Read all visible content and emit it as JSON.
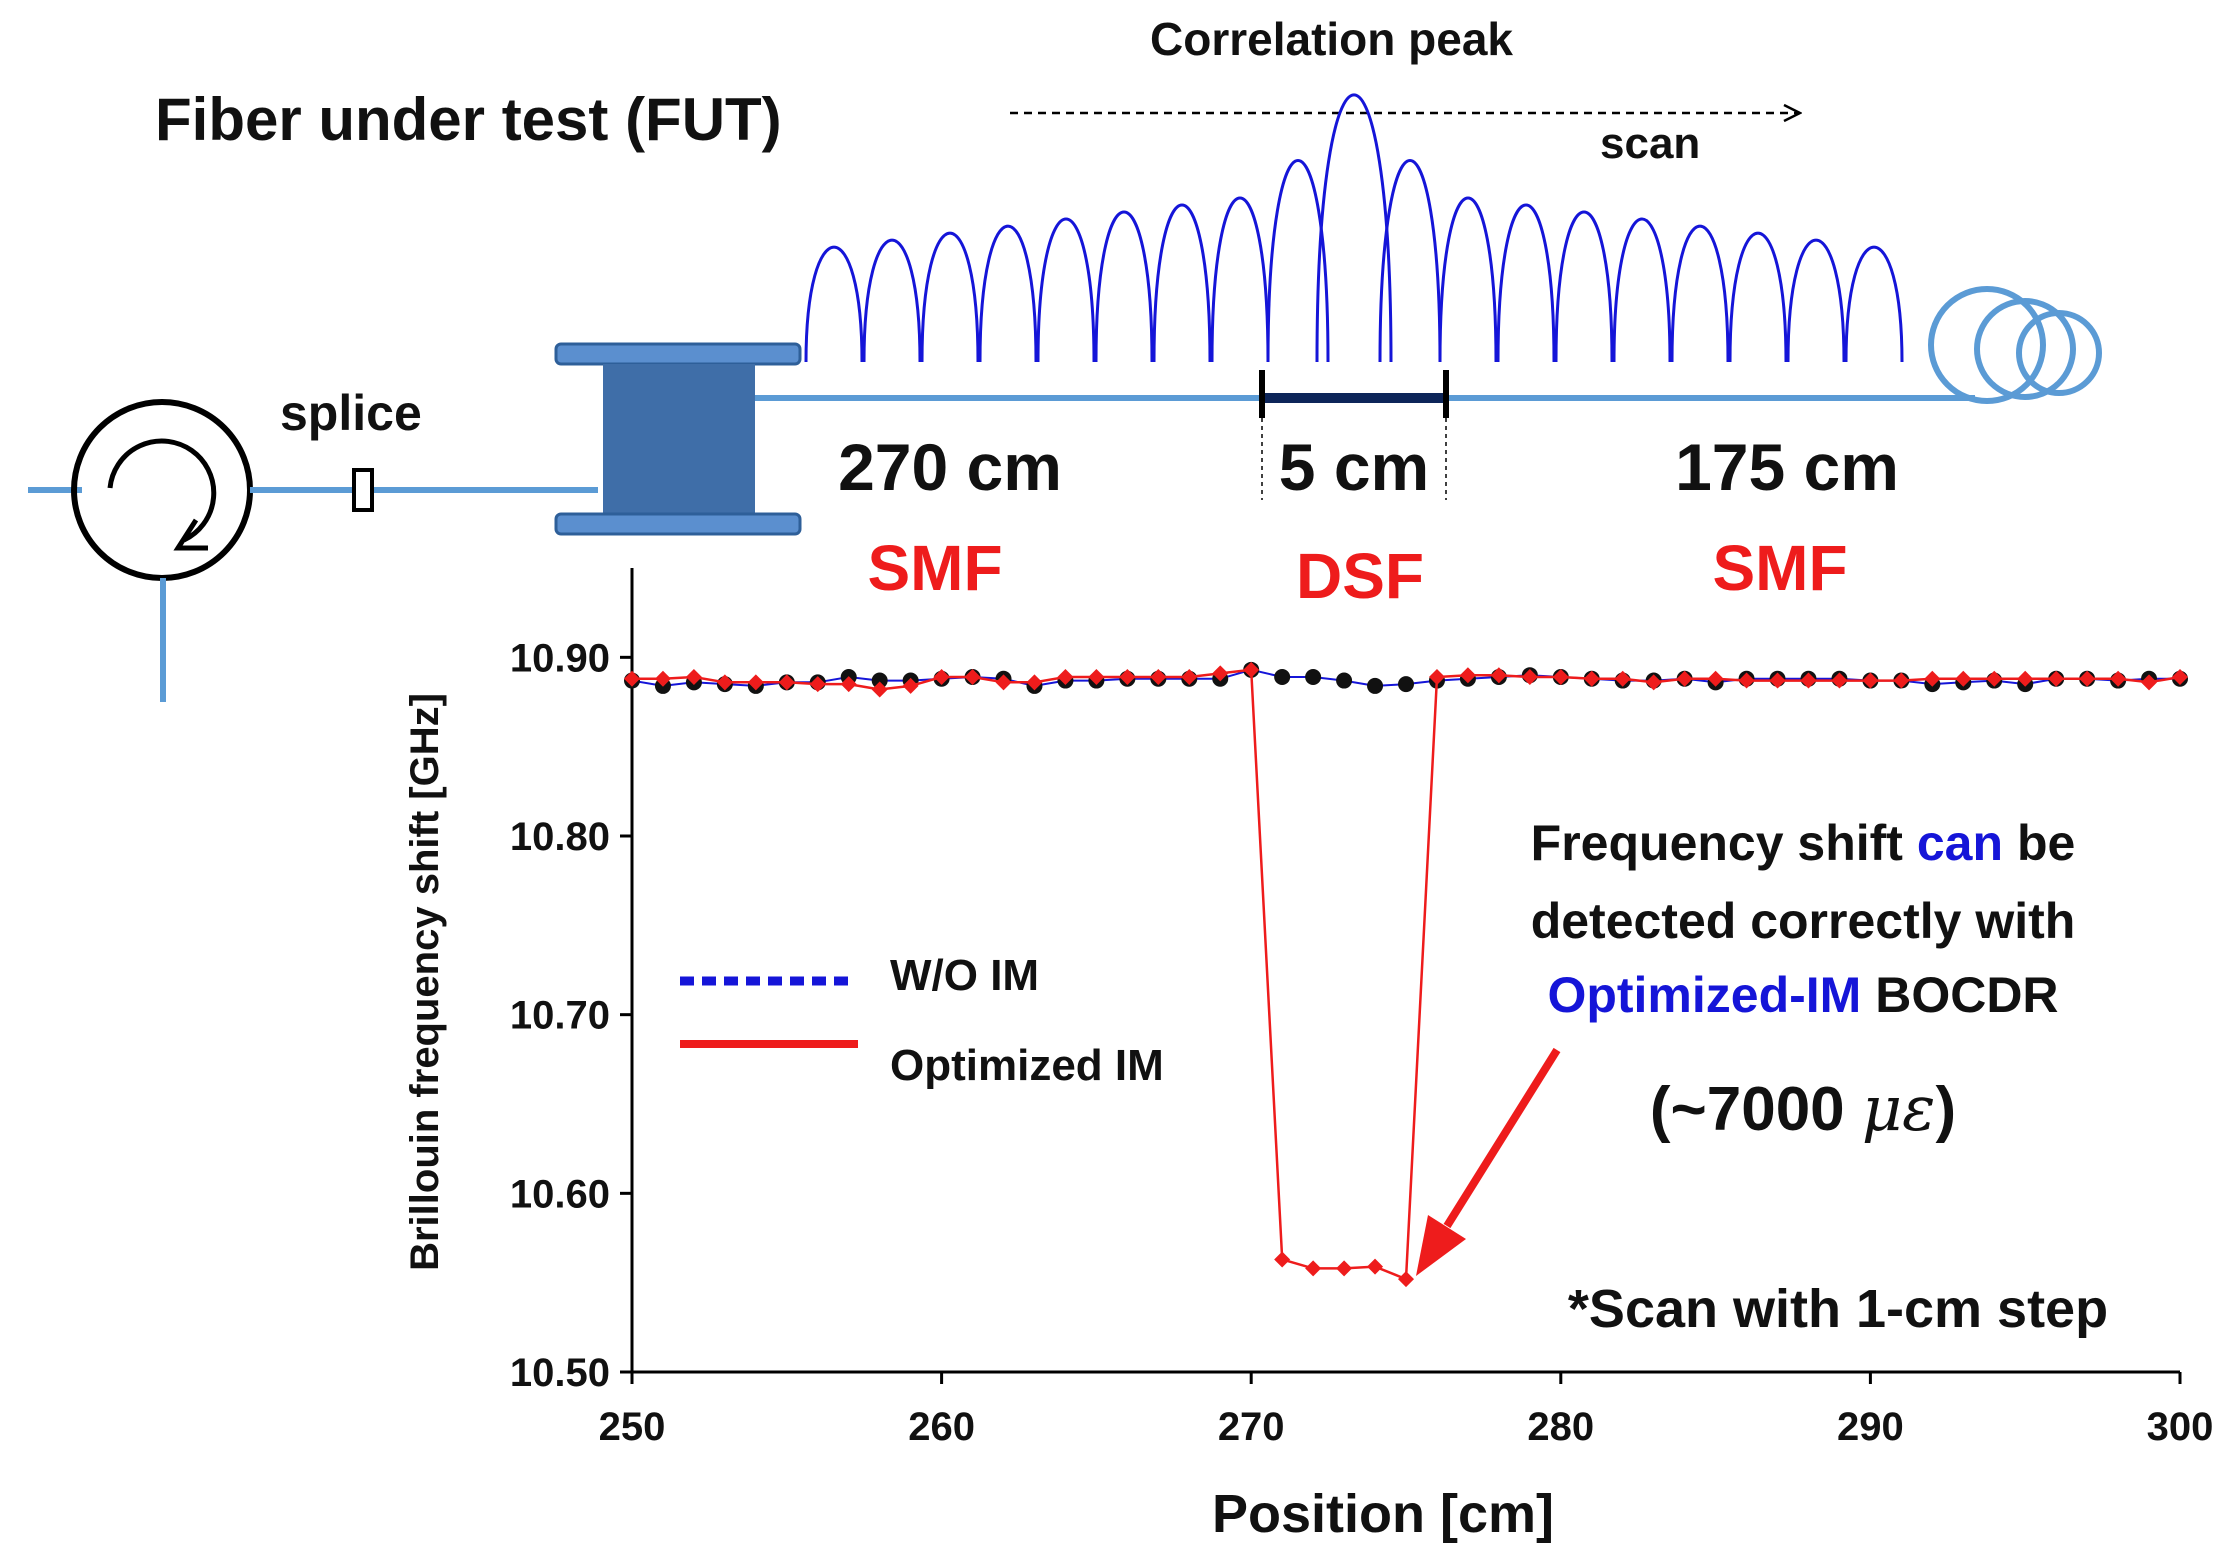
{
  "diagram": {
    "title": "Fiber under test (FUT)",
    "correlation_label": "Correlation peak",
    "scan_label": "scan",
    "splice_label": "splice",
    "segments": [
      {
        "length": "270 cm",
        "type": "SMF"
      },
      {
        "length": "5 cm",
        "type": "DSF"
      },
      {
        "length": "175 cm",
        "type": "SMF"
      }
    ],
    "colors": {
      "fiber": "#5b9bd5",
      "reel": "#3f6ea8",
      "dsf": "#0d2559",
      "peaks": "#1515d8",
      "label_red": "#ee1c1c"
    }
  },
  "annotation": {
    "line1_a": "Frequency shift",
    "line1_b": "can",
    "line1_c": "be",
    "line2": "detected correctly with",
    "line3_a": "Optimized-IM",
    "line3_b": "BOCDR",
    "strain": "(~7000",
    "strain_unit": "με",
    "strain_close": ")",
    "note": "*Scan with 1-cm step"
  },
  "chart_data": {
    "type": "line",
    "xlabel": "Position [cm]",
    "ylabel": "Brillouin frequency shift [GHz]",
    "xlim": [
      250,
      300
    ],
    "ylim": [
      10.5,
      10.95
    ],
    "xticks": [
      "250",
      "260",
      "270",
      "280",
      "290",
      "300"
    ],
    "yticks": [
      "10.50",
      "10.60",
      "10.70",
      "10.80",
      "10.90"
    ],
    "x": [
      250,
      251,
      252,
      253,
      254,
      255,
      256,
      257,
      258,
      259,
      260,
      261,
      262,
      263,
      264,
      265,
      266,
      267,
      268,
      269,
      270,
      271,
      272,
      273,
      274,
      275,
      276,
      277,
      278,
      279,
      280,
      281,
      282,
      283,
      284,
      285,
      286,
      287,
      288,
      289,
      290,
      291,
      292,
      293,
      294,
      295,
      296,
      297,
      298,
      299,
      300
    ],
    "series": [
      {
        "name": "W/O IM",
        "color": "#1515d8",
        "values": [
          10.887,
          10.884,
          10.886,
          10.885,
          10.884,
          10.886,
          10.886,
          10.889,
          10.887,
          10.887,
          10.888,
          10.889,
          10.888,
          10.884,
          10.887,
          10.887,
          10.888,
          10.888,
          10.888,
          10.888,
          10.893,
          10.889,
          10.889,
          10.887,
          10.884,
          10.885,
          10.887,
          10.888,
          10.889,
          10.89,
          10.889,
          10.888,
          10.887,
          10.887,
          10.888,
          10.886,
          10.888,
          10.888,
          10.888,
          10.888,
          10.887,
          10.887,
          10.885,
          10.886,
          10.887,
          10.885,
          10.888,
          10.888,
          10.887,
          10.888,
          10.888
        ]
      },
      {
        "name": "Optimized IM",
        "color": "#ee1c1c",
        "values": [
          10.888,
          10.888,
          10.889,
          10.886,
          10.886,
          10.886,
          10.885,
          10.885,
          10.882,
          10.884,
          10.889,
          10.889,
          10.886,
          10.886,
          10.889,
          10.889,
          10.889,
          10.889,
          10.889,
          10.891,
          10.893,
          10.563,
          10.558,
          10.558,
          10.559,
          10.552,
          10.889,
          10.89,
          10.89,
          10.889,
          10.889,
          10.888,
          10.888,
          10.886,
          10.888,
          10.888,
          10.887,
          10.887,
          10.887,
          10.887,
          10.887,
          10.887,
          10.888,
          10.888,
          10.888,
          10.888,
          10.888,
          10.888,
          10.888,
          10.886,
          10.889
        ]
      }
    ]
  }
}
